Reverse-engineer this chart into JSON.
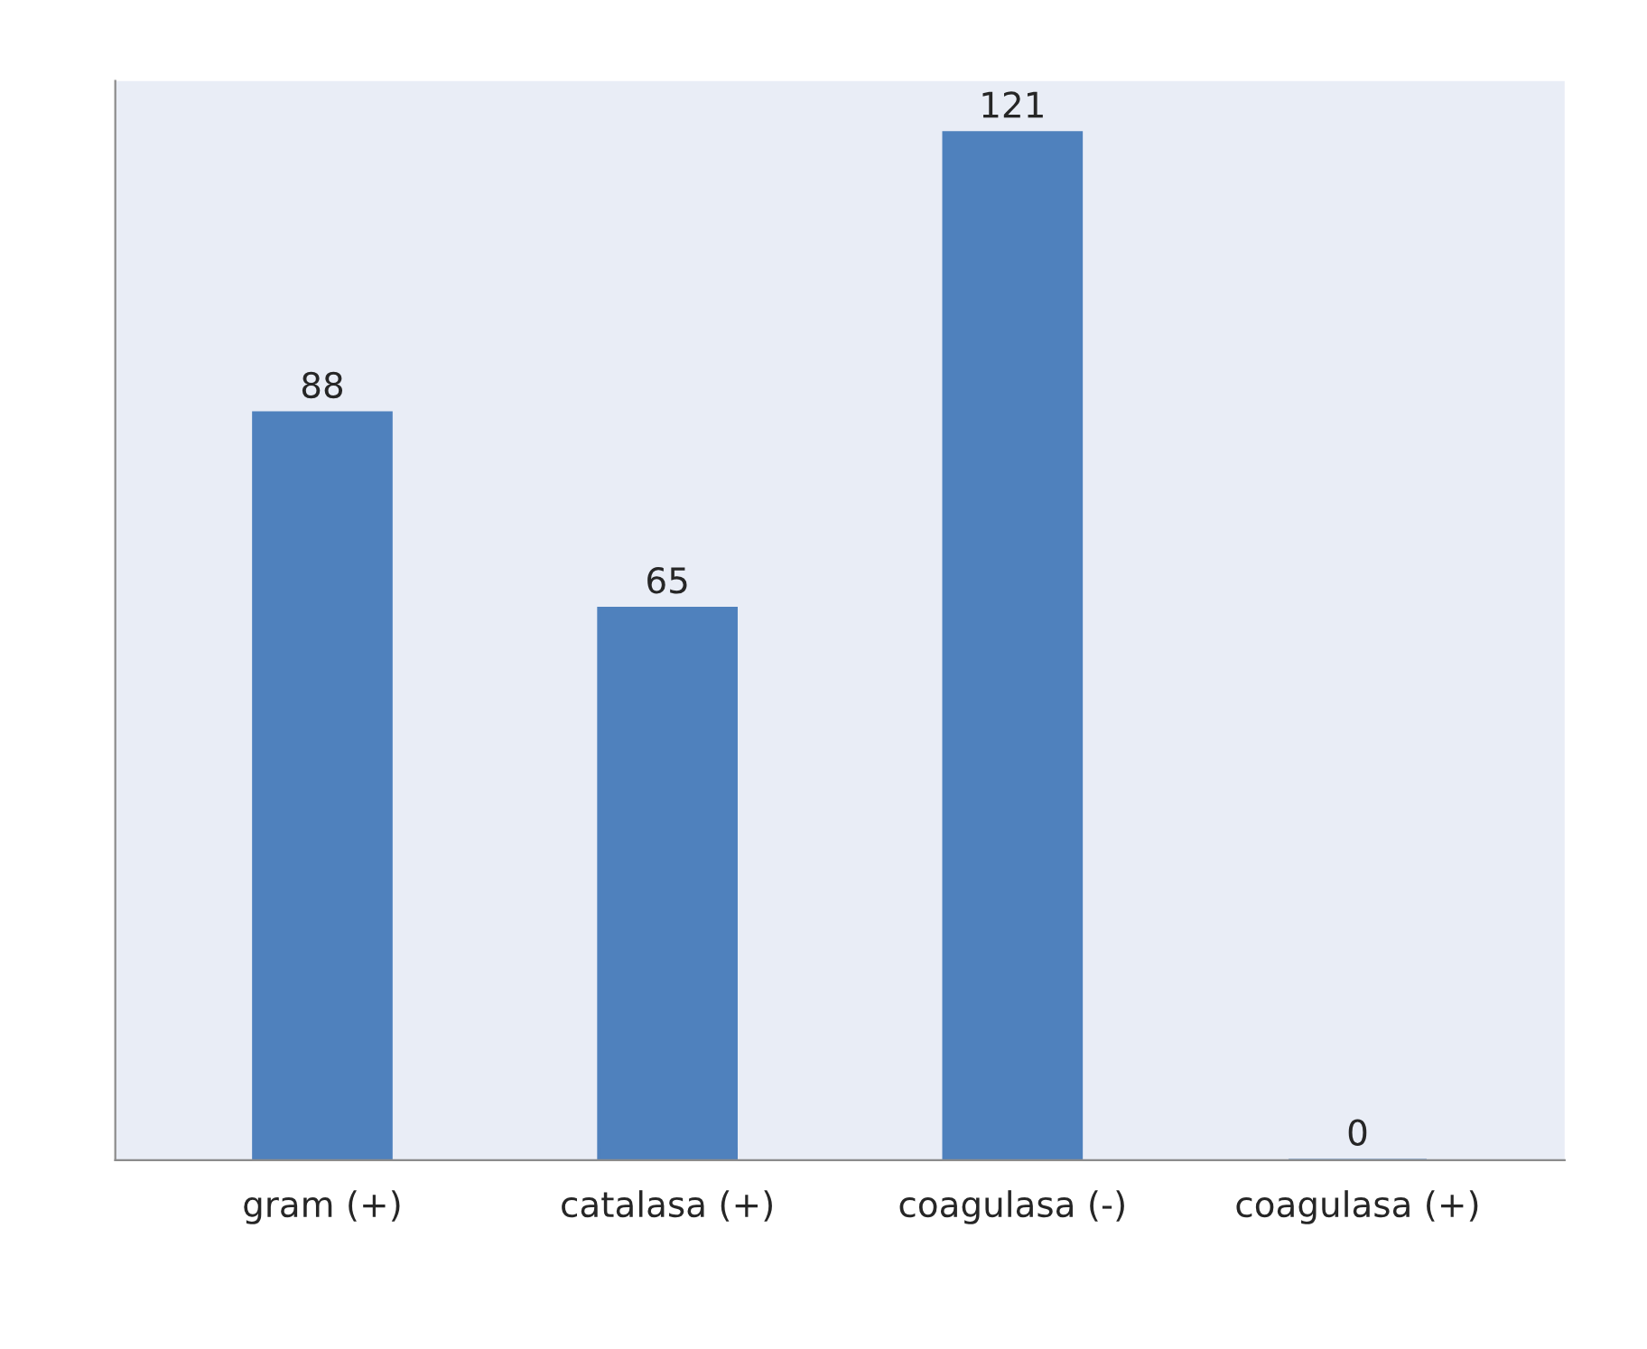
{
  "chart_data": {
    "type": "bar",
    "categories": [
      "gram (+)",
      "catalasa (+)",
      "coagulasa (-)",
      "coagulasa (+)"
    ],
    "values": [
      88,
      65,
      121,
      0
    ],
    "color": "#4f81bd",
    "data_labels": true,
    "tick_labels": "x",
    "grid": false,
    "legend": false
  }
}
